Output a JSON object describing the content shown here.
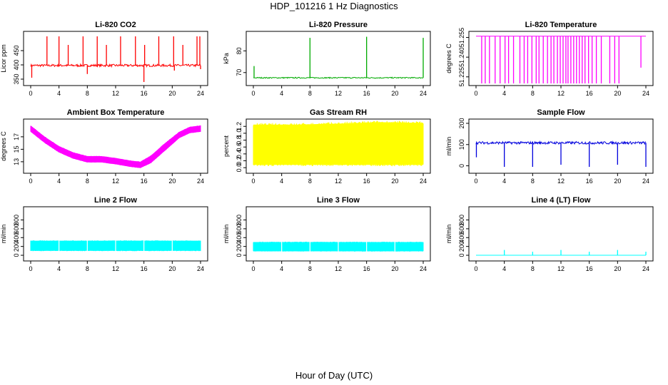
{
  "figure": {
    "title": "HDP_101216  1 Hz Diagnostics",
    "xlabel": "Hour of Day (UTC)"
  },
  "chart_data": [
    {
      "type": "line",
      "title": "Li-820 CO2",
      "ylabel": "Licor ppm",
      "color": "#ff0000",
      "xlim": [
        0,
        24
      ],
      "ylim": [
        335,
        510
      ],
      "xticks": [
        "0",
        "4",
        "8",
        "12",
        "16",
        "20",
        "24"
      ],
      "yticks": [
        "350",
        "400",
        "450"
      ],
      "baseline": 398,
      "noise": 4,
      "spikes": [
        [
          2.3,
          500
        ],
        [
          4,
          500
        ],
        [
          5.3,
          470
        ],
        [
          7.4,
          500
        ],
        [
          9.4,
          500
        ],
        [
          10.7,
          470
        ],
        [
          12.7,
          500
        ],
        [
          14.8,
          500
        ],
        [
          16.1,
          470
        ],
        [
          18.1,
          500
        ],
        [
          20.2,
          500
        ],
        [
          21.5,
          470
        ],
        [
          23.5,
          500
        ],
        [
          23.9,
          500
        ]
      ],
      "dips": [
        [
          0.15,
          355
        ],
        [
          8.0,
          368
        ],
        [
          16.0,
          340
        ],
        [
          20.3,
          380
        ],
        [
          24,
          385
        ]
      ]
    },
    {
      "type": "line",
      "title": "Li-820 Pressure",
      "ylabel": "kPa",
      "color": "#00aa00",
      "xlim": [
        0,
        24
      ],
      "ylim": [
        65,
        88
      ],
      "xticks": [
        "0",
        "4",
        "8",
        "12",
        "16",
        "20",
        "24"
      ],
      "yticks": [
        "70",
        "80"
      ],
      "baseline": 67.6,
      "noise": 0.25,
      "spikes": [
        [
          0.1,
          73
        ],
        [
          8.0,
          86
        ],
        [
          16.0,
          86.5
        ],
        [
          24,
          86
        ]
      ],
      "dips": []
    },
    {
      "type": "line",
      "title": "Li-820 Temperature",
      "ylabel": "degrees C",
      "color": "#ff00ff",
      "xlim": [
        0,
        24
      ],
      "ylim": [
        51.22,
        51.258
      ],
      "xticks": [
        "0",
        "4",
        "8",
        "12",
        "16",
        "20",
        "24"
      ],
      "yticks": [
        "51.225",
        "51.240",
        "51.255"
      ],
      "baseline": 51.256,
      "noise": 0,
      "spikes": [],
      "dips": [
        [
          0.8,
          51.22
        ],
        [
          1.3,
          51.22
        ],
        [
          1.9,
          51.22
        ],
        [
          2.7,
          51.22
        ],
        [
          3.4,
          51.22
        ],
        [
          4.1,
          51.22
        ],
        [
          4.6,
          51.22
        ],
        [
          5.3,
          51.22
        ],
        [
          6.2,
          51.22
        ],
        [
          6.8,
          51.22
        ],
        [
          7.3,
          51.22
        ],
        [
          7.9,
          51.22
        ],
        [
          8.5,
          51.22
        ],
        [
          8.9,
          51.22
        ],
        [
          9.5,
          51.22
        ],
        [
          10.1,
          51.22
        ],
        [
          10.6,
          51.22
        ],
        [
          11.0,
          51.22
        ],
        [
          11.5,
          51.22
        ],
        [
          11.9,
          51.22
        ],
        [
          12.3,
          51.22
        ],
        [
          12.7,
          51.22
        ],
        [
          13.0,
          51.22
        ],
        [
          13.4,
          51.22
        ],
        [
          13.8,
          51.22
        ],
        [
          14.2,
          51.22
        ],
        [
          14.6,
          51.22
        ],
        [
          15.0,
          51.22
        ],
        [
          15.4,
          51.22
        ],
        [
          15.9,
          51.22
        ],
        [
          16.4,
          51.22
        ],
        [
          17.0,
          51.22
        ],
        [
          17.7,
          51.22
        ],
        [
          18.9,
          51.22
        ],
        [
          19.6,
          51.22
        ],
        [
          20.2,
          51.22
        ],
        [
          23.3,
          51.232
        ]
      ]
    },
    {
      "type": "band",
      "title": "Ambient Box Temperature",
      "ylabel": "degrees C",
      "color": "#ff00ff",
      "xlim": [
        0,
        24
      ],
      "ylim": [
        11.5,
        19.5
      ],
      "xticks": [
        "0",
        "4",
        "8",
        "12",
        "16",
        "20",
        "24"
      ],
      "yticks": [
        "13",
        "15",
        "17"
      ],
      "x": [
        0,
        2,
        4,
        6,
        8,
        10,
        12,
        14,
        15.5,
        17,
        19,
        21,
        22.5,
        24
      ],
      "low": [
        17.8,
        16.0,
        14.5,
        13.5,
        12.9,
        12.9,
        12.6,
        12.2,
        12.0,
        12.8,
        14.8,
        16.8,
        17.6,
        17.8
      ],
      "high": [
        18.8,
        17.0,
        15.5,
        14.5,
        13.9,
        13.9,
        13.6,
        13.2,
        13.0,
        14.0,
        16.0,
        17.8,
        18.6,
        18.8
      ]
    },
    {
      "type": "band",
      "title": "Gas Stream RH",
      "ylabel": "percent",
      "color": "#ffff00",
      "xlim": [
        0,
        24
      ],
      "ylim": [
        -0.1,
        1.35
      ],
      "xticks": [
        "0",
        "4",
        "8",
        "12",
        "16",
        "20",
        "24"
      ],
      "yticks": [
        "0.0",
        "0.2",
        "0.4",
        "0.6",
        "0.8",
        "1.0",
        "1.2"
      ],
      "x": [
        0,
        6,
        12,
        18,
        24
      ],
      "low": [
        0.08,
        0.08,
        0.08,
        0.08,
        0.08
      ],
      "high": [
        1.25,
        1.25,
        1.28,
        1.32,
        1.3
      ]
    },
    {
      "type": "line",
      "title": "Sample Flow",
      "ylabel": "ml/min",
      "color": "#0000dd",
      "xlim": [
        0,
        24
      ],
      "ylim": [
        -25,
        210
      ],
      "xticks": [
        "0",
        "4",
        "8",
        "12",
        "16",
        "20",
        "24"
      ],
      "yticks": [
        "0",
        "100",
        "200"
      ],
      "baseline": 108,
      "noise": 6,
      "spikes": [],
      "dips": [
        [
          0.05,
          40
        ],
        [
          4.0,
          -5
        ],
        [
          8.0,
          -5
        ],
        [
          12.0,
          5
        ],
        [
          16.0,
          -5
        ],
        [
          20.0,
          5
        ],
        [
          24,
          -5
        ]
      ]
    },
    {
      "type": "band",
      "title": "Line 2 Flow",
      "ylabel": "ml/min",
      "color": "#00ffff",
      "xlim": [
        0,
        24
      ],
      "ylim": [
        -80,
        1050
      ],
      "xticks": [
        "0",
        "4",
        "8",
        "12",
        "16",
        "20",
        "24"
      ],
      "yticks": [
        "0",
        "200",
        "400",
        "600",
        "800"
      ],
      "x": [
        0,
        24
      ],
      "low": [
        100,
        100
      ],
      "high": [
        330,
        330
      ],
      "gaps": [
        4,
        8,
        12,
        16,
        20
      ]
    },
    {
      "type": "band",
      "title": "Line 3 Flow",
      "ylabel": "ml/min",
      "color": "#00ffff",
      "xlim": [
        0,
        24
      ],
      "ylim": [
        -80,
        1050
      ],
      "xticks": [
        "0",
        "4",
        "8",
        "12",
        "16",
        "20",
        "24"
      ],
      "yticks": [
        "0",
        "200",
        "400",
        "600",
        "800"
      ],
      "x": [
        0,
        24
      ],
      "low": [
        90,
        90
      ],
      "high": [
        300,
        300
      ],
      "gaps": [
        4,
        8,
        12,
        16,
        20
      ]
    },
    {
      "type": "line",
      "title": "Line 4 (LT) Flow",
      "ylabel": "ml/min",
      "color": "#00ffff",
      "xlim": [
        0,
        24
      ],
      "ylim": [
        -80,
        1050
      ],
      "xticks": [
        "0",
        "4",
        "8",
        "12",
        "16",
        "20",
        "24"
      ],
      "yticks": [
        "0",
        "200",
        "400",
        "600",
        "800"
      ],
      "baseline": 0,
      "noise": 0,
      "spikes": [
        [
          4.0,
          120
        ],
        [
          8.0,
          80
        ],
        [
          12.0,
          120
        ],
        [
          16.0,
          80
        ],
        [
          20.0,
          120
        ],
        [
          24.0,
          80
        ]
      ],
      "dips": []
    }
  ]
}
